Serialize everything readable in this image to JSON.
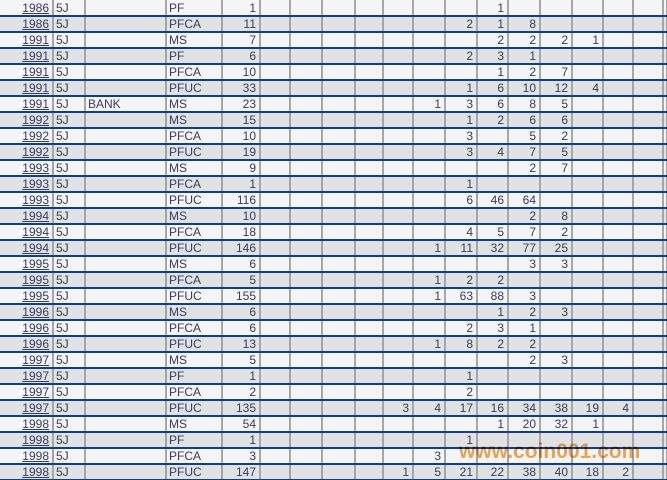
{
  "table": {
    "rows": [
      [
        "1986",
        "5J",
        "",
        "PF",
        "1",
        "",
        "",
        "",
        "",
        "",
        "",
        "",
        "1",
        "",
        "",
        "",
        "",
        ""
      ],
      [
        "1986",
        "5J",
        "",
        "PFCA",
        "11",
        "",
        "",
        "",
        "",
        "",
        "",
        "2",
        "1",
        "8",
        "",
        "",
        "",
        ""
      ],
      [
        "1991",
        "5J",
        "",
        "MS",
        "7",
        "",
        "",
        "",
        "",
        "",
        "",
        "",
        "2",
        "2",
        "2",
        "1",
        "",
        ""
      ],
      [
        "1991",
        "5J",
        "",
        "PF",
        "6",
        "",
        "",
        "",
        "",
        "",
        "",
        "2",
        "3",
        "1",
        "",
        "",
        "",
        ""
      ],
      [
        "1991",
        "5J",
        "",
        "PFCA",
        "10",
        "",
        "",
        "",
        "",
        "",
        "",
        "",
        "1",
        "2",
        "7",
        "",
        "",
        ""
      ],
      [
        "1991",
        "5J",
        "",
        "PFUC",
        "33",
        "",
        "",
        "",
        "",
        "",
        "",
        "1",
        "6",
        "10",
        "12",
        "4",
        "",
        ""
      ],
      [
        "1991",
        "5J",
        "BANK",
        "MS",
        "23",
        "",
        "",
        "",
        "",
        "",
        "1",
        "3",
        "6",
        "8",
        "5",
        "",
        "",
        ""
      ],
      [
        "1992",
        "5J",
        "",
        "MS",
        "15",
        "",
        "",
        "",
        "",
        "",
        "",
        "1",
        "2",
        "6",
        "6",
        "",
        "",
        ""
      ],
      [
        "1992",
        "5J",
        "",
        "PFCA",
        "10",
        "",
        "",
        "",
        "",
        "",
        "",
        "3",
        "",
        "5",
        "2",
        "",
        "",
        ""
      ],
      [
        "1992",
        "5J",
        "",
        "PFUC",
        "19",
        "",
        "",
        "",
        "",
        "",
        "",
        "3",
        "4",
        "7",
        "5",
        "",
        "",
        ""
      ],
      [
        "1993",
        "5J",
        "",
        "MS",
        "9",
        "",
        "",
        "",
        "",
        "",
        "",
        "",
        "",
        "2",
        "7",
        "",
        "",
        ""
      ],
      [
        "1993",
        "5J",
        "",
        "PFCA",
        "1",
        "",
        "",
        "",
        "",
        "",
        "",
        "1",
        "",
        "",
        "",
        "",
        "",
        ""
      ],
      [
        "1993",
        "5J",
        "",
        "PFUC",
        "116",
        "",
        "",
        "",
        "",
        "",
        "",
        "6",
        "46",
        "64",
        "",
        "",
        "",
        ""
      ],
      [
        "1994",
        "5J",
        "",
        "MS",
        "10",
        "",
        "",
        "",
        "",
        "",
        "",
        "",
        "",
        "2",
        "8",
        "",
        "",
        ""
      ],
      [
        "1994",
        "5J",
        "",
        "PFCA",
        "18",
        "",
        "",
        "",
        "",
        "",
        "",
        "4",
        "5",
        "7",
        "2",
        "",
        "",
        ""
      ],
      [
        "1994",
        "5J",
        "",
        "PFUC",
        "146",
        "",
        "",
        "",
        "",
        "",
        "1",
        "11",
        "32",
        "77",
        "25",
        "",
        "",
        ""
      ],
      [
        "1995",
        "5J",
        "",
        "MS",
        "6",
        "",
        "",
        "",
        "",
        "",
        "",
        "",
        "",
        "3",
        "3",
        "",
        "",
        ""
      ],
      [
        "1995",
        "5J",
        "",
        "PFCA",
        "5",
        "",
        "",
        "",
        "",
        "",
        "1",
        "2",
        "2",
        "",
        "",
        "",
        "",
        ""
      ],
      [
        "1995",
        "5J",
        "",
        "PFUC",
        "155",
        "",
        "",
        "",
        "",
        "",
        "1",
        "63",
        "88",
        "3",
        "",
        "",
        "",
        ""
      ],
      [
        "1996",
        "5J",
        "",
        "MS",
        "6",
        "",
        "",
        "",
        "",
        "",
        "",
        "",
        "1",
        "2",
        "3",
        "",
        "",
        ""
      ],
      [
        "1996",
        "5J",
        "",
        "PFCA",
        "6",
        "",
        "",
        "",
        "",
        "",
        "",
        "2",
        "3",
        "1",
        "",
        "",
        "",
        ""
      ],
      [
        "1996",
        "5J",
        "",
        "PFUC",
        "13",
        "",
        "",
        "",
        "",
        "",
        "1",
        "8",
        "2",
        "2",
        "",
        "",
        "",
        ""
      ],
      [
        "1997",
        "5J",
        "",
        "MS",
        "5",
        "",
        "",
        "",
        "",
        "",
        "",
        "",
        "",
        "2",
        "3",
        "",
        "",
        ""
      ],
      [
        "1997",
        "5J",
        "",
        "PF",
        "1",
        "",
        "",
        "",
        "",
        "",
        "",
        "1",
        "",
        "",
        "",
        "",
        "",
        ""
      ],
      [
        "1997",
        "5J",
        "",
        "PFCA",
        "2",
        "",
        "",
        "",
        "",
        "",
        "",
        "2",
        "",
        "",
        "",
        "",
        "",
        ""
      ],
      [
        "1997",
        "5J",
        "",
        "PFUC",
        "135",
        "",
        "",
        "",
        "",
        "3",
        "4",
        "17",
        "16",
        "34",
        "38",
        "19",
        "4",
        ""
      ],
      [
        "1998",
        "5J",
        "",
        "MS",
        "54",
        "",
        "",
        "",
        "",
        "",
        "",
        "",
        "1",
        "20",
        "32",
        "1",
        "",
        ""
      ],
      [
        "1998",
        "5J",
        "",
        "PF",
        "1",
        "",
        "",
        "",
        "",
        "",
        "",
        "1",
        "",
        "",
        "",
        "",
        "",
        ""
      ],
      [
        "1998",
        "5J",
        "",
        "PFCA",
        "3",
        "",
        "",
        "",
        "",
        "",
        "3",
        "",
        "",
        "",
        "",
        "",
        "",
        ""
      ],
      [
        "1998",
        "5J",
        "",
        "PFUC",
        "147",
        "",
        "",
        "",
        "",
        "1",
        "5",
        "21",
        "22",
        "38",
        "40",
        "18",
        "2",
        ""
      ]
    ]
  },
  "watermark": {
    "text": "www.coin001.com"
  },
  "colors": {
    "row_separator": "#0e3c99",
    "gridline": "#a6a6a6",
    "row_light": "#f5f5f5",
    "row_dark": "#e2e2e2",
    "cell_text": "#3a3a66",
    "year_link": "#2b3fc6",
    "watermark_orange": "#f39d3d"
  }
}
